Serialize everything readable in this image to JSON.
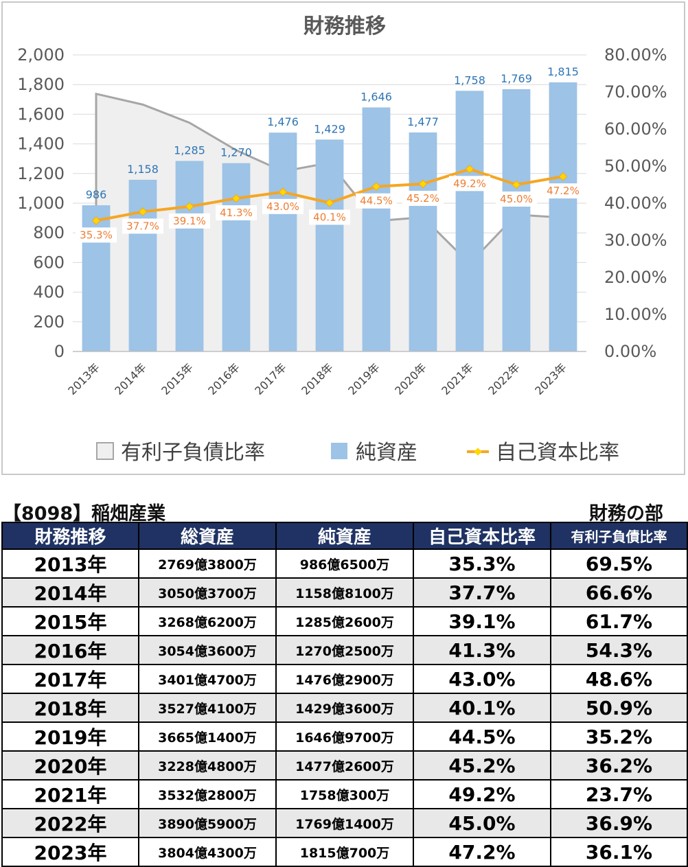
{
  "chart_data": {
    "type": "bar",
    "title": "財務推移",
    "categories": [
      "2013年",
      "2014年",
      "2015年",
      "2016年",
      "2017年",
      "2018年",
      "2019年",
      "2020年",
      "2021年",
      "2022年",
      "2023年"
    ],
    "series": [
      {
        "name": "有利子負債比率",
        "type": "area",
        "axis": "right",
        "values": [
          69.5,
          66.6,
          61.7,
          54.3,
          48.6,
          50.9,
          35.2,
          36.2,
          23.7,
          36.9,
          36.1
        ],
        "color": "#a6a6a6",
        "fill": "#efefef"
      },
      {
        "name": "純資産",
        "type": "bar",
        "axis": "left",
        "values": [
          986,
          1158,
          1285,
          1270,
          1476,
          1429,
          1646,
          1477,
          1758,
          1769,
          1815
        ],
        "color": "#9dc3e6",
        "labels": [
          "986",
          "1,158",
          "1,285",
          "1,270",
          "1,476",
          "1,429",
          "1,646",
          "1,477",
          "1,758",
          "1,769",
          "1,815"
        ]
      },
      {
        "name": "自己資本比率",
        "type": "line",
        "axis": "right",
        "values": [
          35.3,
          37.7,
          39.1,
          41.3,
          43.0,
          40.1,
          44.5,
          45.2,
          49.2,
          45.0,
          47.2
        ],
        "color": "#f5a623",
        "labels": [
          "35.3%",
          "37.7%",
          "39.1%",
          "41.3%",
          "43.0%",
          "40.1%",
          "44.5%",
          "45.2%",
          "49.2%",
          "45.0%",
          "47.2%"
        ]
      }
    ],
    "y_left": {
      "ylim": [
        0,
        2000
      ],
      "ticks": [
        "0",
        "200",
        "400",
        "600",
        "800",
        "1,000",
        "1,200",
        "1,400",
        "1,600",
        "1,800",
        "2,000"
      ]
    },
    "y_right": {
      "ylim": [
        0,
        80
      ],
      "ticks": [
        "0.00%",
        "10.00%",
        "20.00%",
        "30.00%",
        "40.00%",
        "50.00%",
        "60.00%",
        "70.00%",
        "80.00%"
      ]
    },
    "grid": true,
    "legend": "bottom"
  },
  "company": "【8098】稲畑産業",
  "section": "財務の部",
  "table": {
    "headers": [
      "財務推移",
      "総資産",
      "純資産",
      "自己資本比率",
      "有利子負債比率"
    ],
    "rows": [
      [
        "2013年",
        "2769億3800万",
        "986億6500万",
        "35.3%",
        "69.5%"
      ],
      [
        "2014年",
        "3050億3700万",
        "1158億8100万",
        "37.7%",
        "66.6%"
      ],
      [
        "2015年",
        "3268億6200万",
        "1285億2600万",
        "39.1%",
        "61.7%"
      ],
      [
        "2016年",
        "3054億3600万",
        "1270億2500万",
        "41.3%",
        "54.3%"
      ],
      [
        "2017年",
        "3401億4700万",
        "1476億2900万",
        "43.0%",
        "48.6%"
      ],
      [
        "2018年",
        "3527億4100万",
        "1429億3600万",
        "40.1%",
        "50.9%"
      ],
      [
        "2019年",
        "3665億1400万",
        "1646億9700万",
        "44.5%",
        "35.2%"
      ],
      [
        "2020年",
        "3228億4800万",
        "1477億2600万",
        "45.2%",
        "36.2%"
      ],
      [
        "2021年",
        "3532億2800万",
        "1758億300万",
        "49.2%",
        "23.7%"
      ],
      [
        "2022年",
        "3890億5900万",
        "1769億1400万",
        "45.0%",
        "36.9%"
      ],
      [
        "2023年",
        "3804億4300万",
        "1815億700万",
        "47.2%",
        "36.1%"
      ]
    ]
  }
}
